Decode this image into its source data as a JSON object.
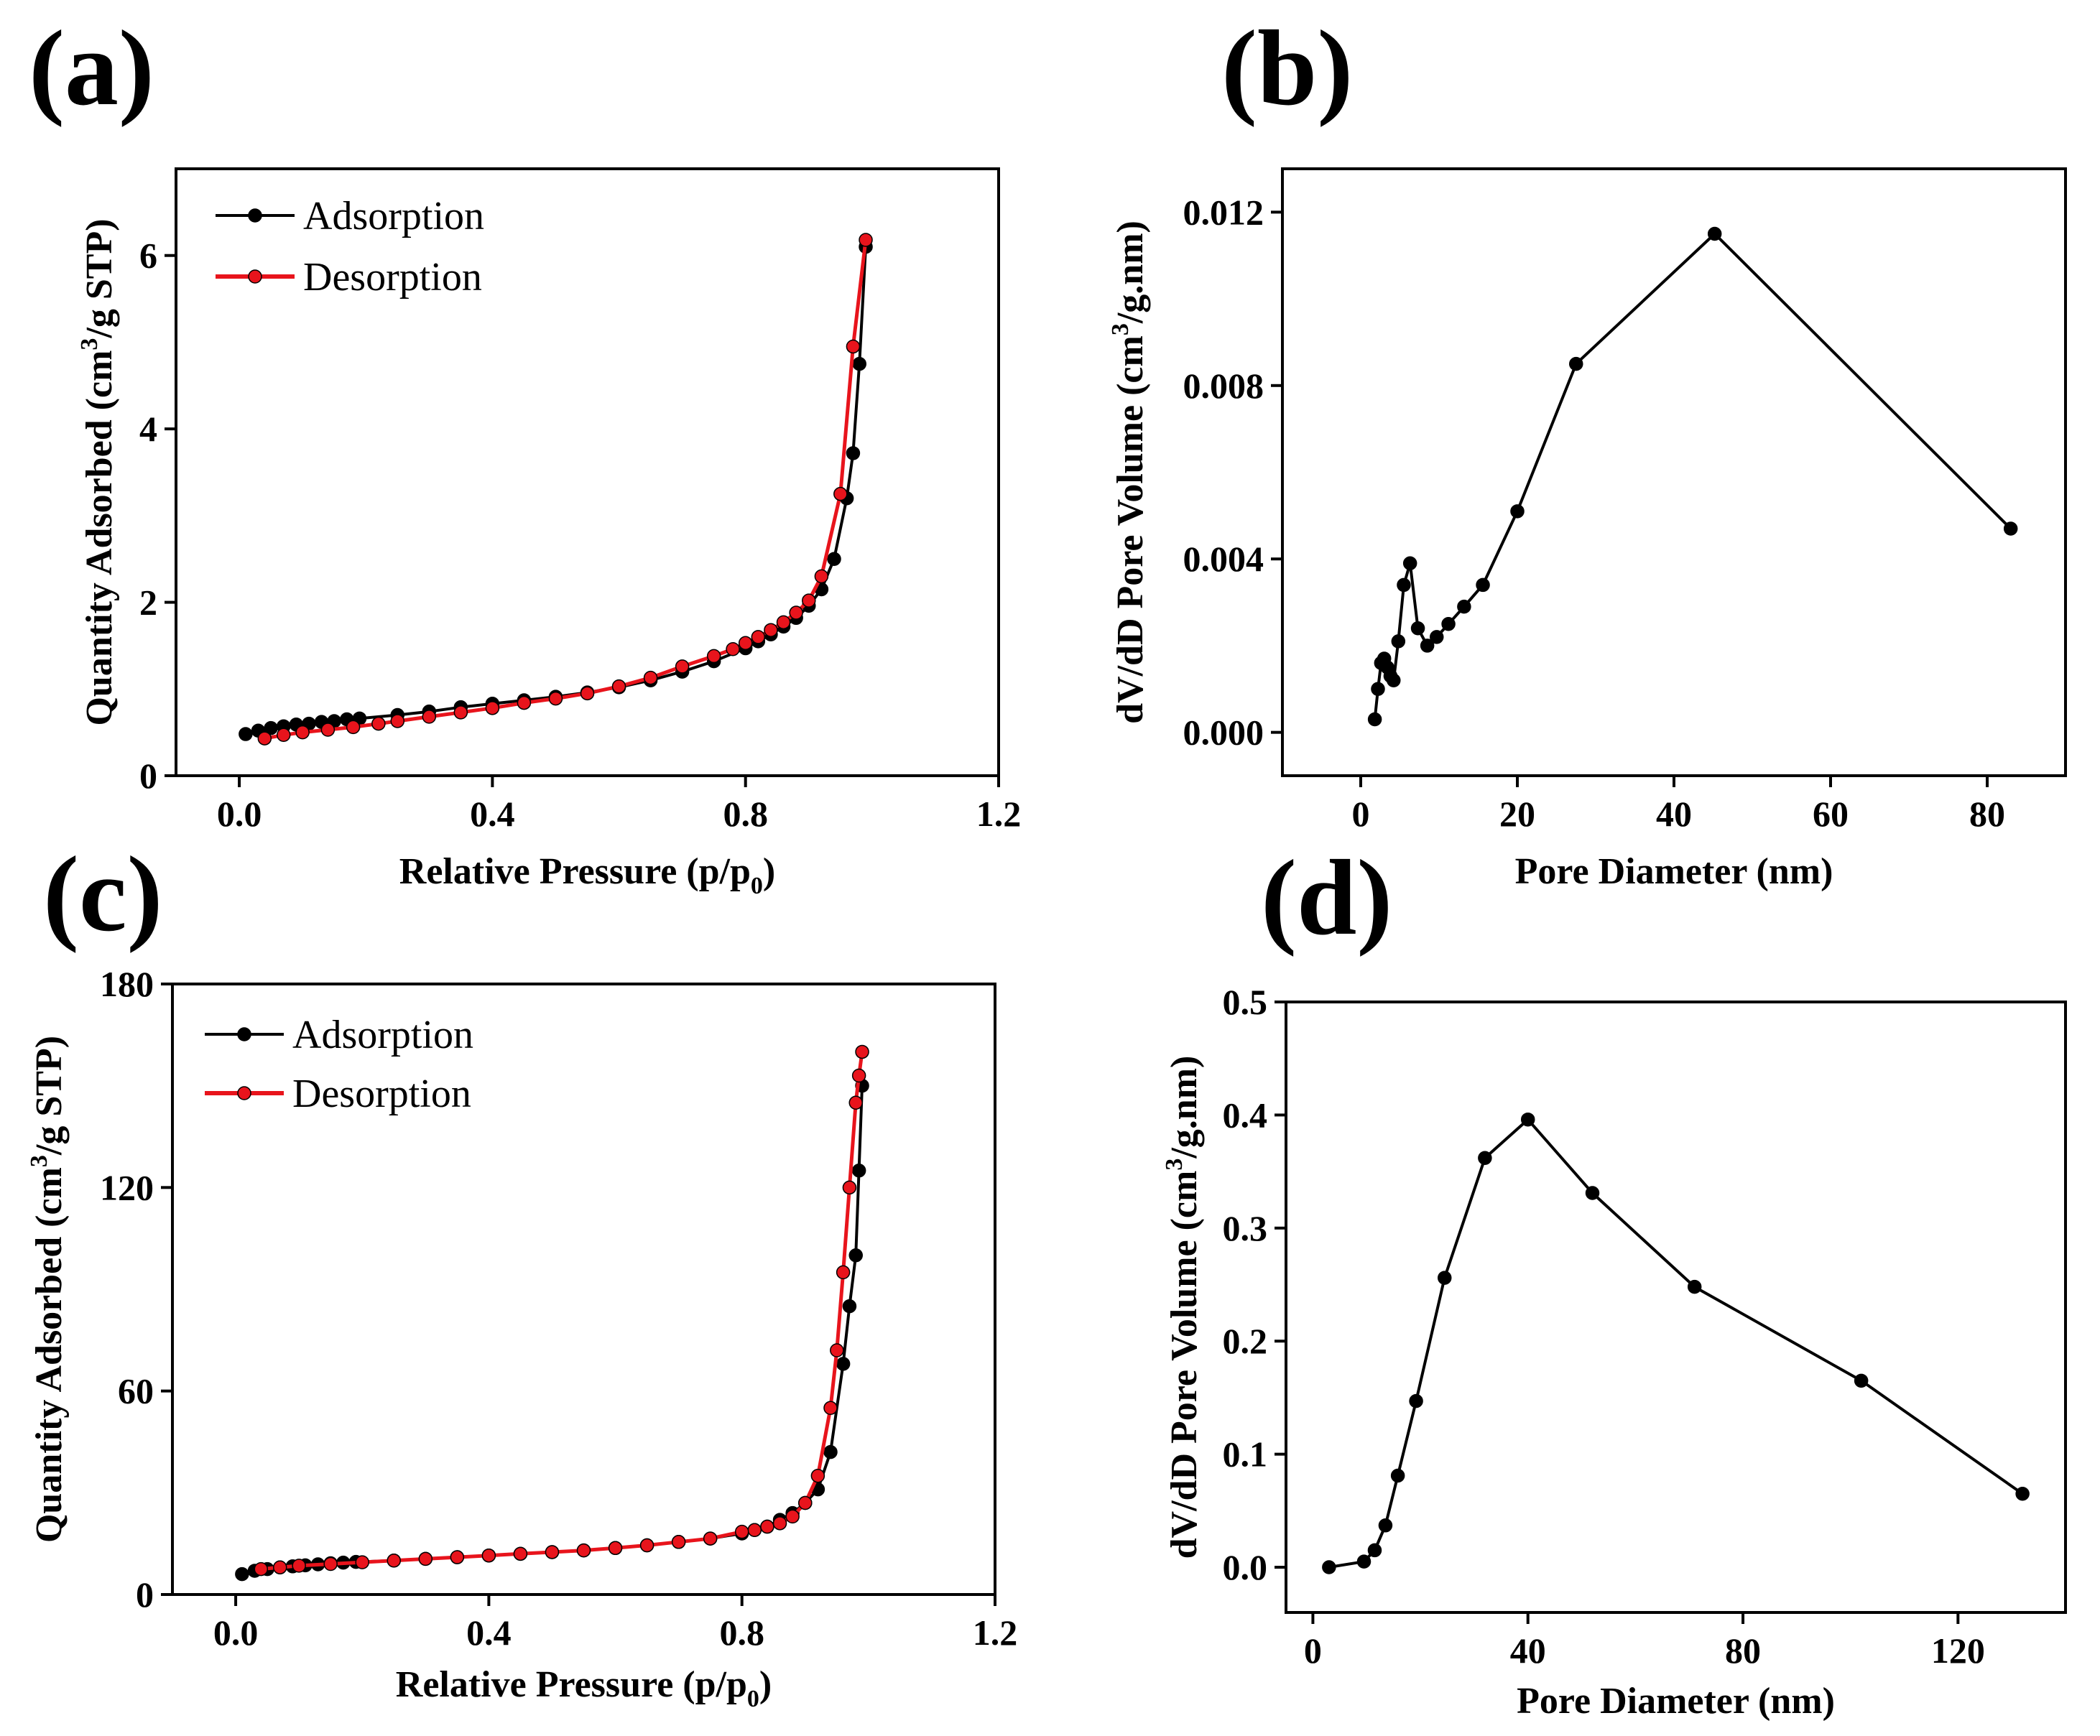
{
  "figure": {
    "panel_labels": [
      "(a)",
      "(b)",
      "(c)",
      "(d)"
    ]
  },
  "chart_data": [
    {
      "id": "a",
      "type": "line",
      "xlabel": "Relative Pressure (p/p",
      "xlabel_sub": "0",
      "xlabel_end": ")",
      "ylabel": "Quantity Adsorbed (cm",
      "ylabel_sup": "3",
      "ylabel_end": "/g STP)",
      "xlim": [
        -0.1,
        1.2
      ],
      "ylim": [
        0,
        7
      ],
      "xticks": [
        0.0,
        0.4,
        0.8,
        1.2
      ],
      "xtick_labels": [
        "0.0",
        "0.4",
        "0.8",
        "1.2"
      ],
      "yticks": [
        0,
        2,
        4,
        6
      ],
      "ytick_labels": [
        "0",
        "2",
        "4",
        "6"
      ],
      "legend": [
        "Adsorption",
        "Desorption"
      ],
      "series": [
        {
          "name": "Adsorption",
          "color": "#000000",
          "x": [
            0.01,
            0.03,
            0.05,
            0.07,
            0.09,
            0.11,
            0.13,
            0.15,
            0.17,
            0.19,
            0.25,
            0.3,
            0.35,
            0.4,
            0.45,
            0.5,
            0.55,
            0.6,
            0.65,
            0.7,
            0.75,
            0.8,
            0.82,
            0.84,
            0.86,
            0.88,
            0.9,
            0.92,
            0.94,
            0.96,
            0.97,
            0.98,
            0.99
          ],
          "y": [
            0.48,
            0.52,
            0.55,
            0.57,
            0.59,
            0.6,
            0.62,
            0.63,
            0.65,
            0.66,
            0.7,
            0.74,
            0.79,
            0.83,
            0.87,
            0.91,
            0.96,
            1.02,
            1.1,
            1.2,
            1.32,
            1.47,
            1.55,
            1.63,
            1.72,
            1.82,
            1.96,
            2.15,
            2.5,
            3.2,
            3.72,
            4.75,
            6.1
          ]
        },
        {
          "name": "Desorption",
          "color": "#e8141c",
          "x": [
            0.99,
            0.97,
            0.95,
            0.92,
            0.9,
            0.88,
            0.86,
            0.84,
            0.82,
            0.8,
            0.78,
            0.75,
            0.7,
            0.65,
            0.6,
            0.55,
            0.5,
            0.45,
            0.4,
            0.35,
            0.3,
            0.25,
            0.22,
            0.18,
            0.14,
            0.1,
            0.07,
            0.04
          ],
          "y": [
            6.18,
            4.95,
            3.25,
            2.3,
            2.02,
            1.88,
            1.77,
            1.68,
            1.6,
            1.53,
            1.46,
            1.38,
            1.26,
            1.13,
            1.03,
            0.95,
            0.89,
            0.84,
            0.78,
            0.73,
            0.68,
            0.63,
            0.6,
            0.56,
            0.53,
            0.5,
            0.47,
            0.43
          ]
        }
      ]
    },
    {
      "id": "b",
      "type": "line",
      "xlabel": "Pore Diameter (nm)",
      "ylabel": "dV/dD Pore Volume (cm",
      "ylabel_sup": "3",
      "ylabel_end": "/g.nm)",
      "xlim": [
        -10,
        90
      ],
      "ylim": [
        -0.001,
        0.013
      ],
      "xticks": [
        0,
        20,
        40,
        60,
        80
      ],
      "xtick_labels": [
        "0",
        "20",
        "40",
        "60",
        "80"
      ],
      "yticks": [
        0.0,
        0.004,
        0.008,
        0.012
      ],
      "ytick_labels": [
        "0.000",
        "0.004",
        "0.008",
        "0.012"
      ],
      "series": [
        {
          "name": "dV/dD",
          "color": "#000000",
          "x": [
            1.8,
            2.2,
            2.6,
            3.0,
            3.4,
            3.8,
            4.2,
            4.8,
            5.5,
            6.3,
            7.3,
            8.5,
            9.7,
            11.2,
            13.2,
            15.6,
            20.0,
            27.5,
            45.2,
            83.0
          ],
          "y": [
            0.0003,
            0.001,
            0.0016,
            0.0017,
            0.0015,
            0.0013,
            0.0012,
            0.0021,
            0.0034,
            0.0039,
            0.0024,
            0.002,
            0.0022,
            0.0025,
            0.0029,
            0.0034,
            0.0051,
            0.0085,
            0.0115,
            0.0047
          ]
        }
      ]
    },
    {
      "id": "c",
      "type": "line",
      "xlabel": "Relative Pressure (p/p",
      "xlabel_sub": "0",
      "xlabel_end": ")",
      "ylabel": "Quantity Adsorbed (cm",
      "ylabel_sup": "3",
      "ylabel_end": "/g STP)",
      "xlim": [
        -0.1,
        1.2
      ],
      "ylim": [
        0,
        180
      ],
      "xticks": [
        0.0,
        0.4,
        0.8,
        1.2
      ],
      "xtick_labels": [
        "0.0",
        "0.4",
        "0.8",
        "1.2"
      ],
      "yticks": [
        0,
        60,
        120,
        180
      ],
      "ytick_labels": [
        "0",
        "60",
        "120",
        "180"
      ],
      "legend": [
        "Adsorption",
        "Desorption"
      ],
      "series": [
        {
          "name": "Adsorption",
          "color": "#000000",
          "x": [
            0.01,
            0.03,
            0.05,
            0.07,
            0.09,
            0.11,
            0.13,
            0.15,
            0.17,
            0.19,
            0.25,
            0.3,
            0.35,
            0.4,
            0.45,
            0.5,
            0.55,
            0.6,
            0.65,
            0.7,
            0.75,
            0.8,
            0.82,
            0.84,
            0.86,
            0.88,
            0.9,
            0.92,
            0.94,
            0.96,
            0.97,
            0.98,
            0.985,
            0.99
          ],
          "y": [
            6,
            7,
            7.5,
            8,
            8.3,
            8.6,
            8.9,
            9.2,
            9.4,
            9.6,
            10,
            10.5,
            11,
            11.5,
            12,
            12.5,
            13,
            13.7,
            14.5,
            15.5,
            16.5,
            18,
            19,
            20,
            22,
            24,
            27,
            31,
            42,
            68,
            85,
            100,
            125,
            150
          ]
        },
        {
          "name": "Desorption",
          "color": "#e8141c",
          "x": [
            0.99,
            0.985,
            0.98,
            0.97,
            0.96,
            0.95,
            0.94,
            0.92,
            0.9,
            0.88,
            0.86,
            0.84,
            0.82,
            0.8,
            0.75,
            0.7,
            0.65,
            0.6,
            0.55,
            0.5,
            0.45,
            0.4,
            0.35,
            0.3,
            0.25,
            0.2,
            0.15,
            0.1,
            0.07,
            0.04
          ],
          "y": [
            160,
            153,
            145,
            120,
            95,
            72,
            55,
            35,
            27,
            23,
            21,
            20,
            19,
            18.5,
            16.5,
            15.5,
            14.5,
            13.7,
            13,
            12.5,
            12,
            11.5,
            11,
            10.5,
            10,
            9.5,
            9,
            8.5,
            8,
            7.5
          ]
        }
      ]
    },
    {
      "id": "d",
      "type": "line",
      "xlabel": "Pore Diameter (nm)",
      "ylabel": "dV/dD Pore Volume (cm",
      "ylabel_sup": "3",
      "ylabel_end": "/g.nm)",
      "xlim": [
        -5,
        140
      ],
      "ylim": [
        -0.04,
        0.5
      ],
      "xticks": [
        0,
        40,
        80,
        120
      ],
      "xtick_labels": [
        "0",
        "40",
        "80",
        "120"
      ],
      "yticks": [
        0.0,
        0.1,
        0.2,
        0.3,
        0.4,
        0.5
      ],
      "ytick_labels": [
        "0.0",
        "0.1",
        "0.2",
        "0.3",
        "0.4",
        "0.5"
      ],
      "series": [
        {
          "name": "dV/dD",
          "color": "#000000",
          "x": [
            3,
            9.5,
            11.5,
            13.5,
            15.8,
            19.2,
            24.5,
            32,
            40,
            52,
            71,
            102,
            132
          ],
          "y": [
            0.0,
            0.005,
            0.015,
            0.037,
            0.081,
            0.147,
            0.256,
            0.362,
            0.396,
            0.331,
            0.248,
            0.165,
            0.065
          ]
        }
      ]
    }
  ]
}
